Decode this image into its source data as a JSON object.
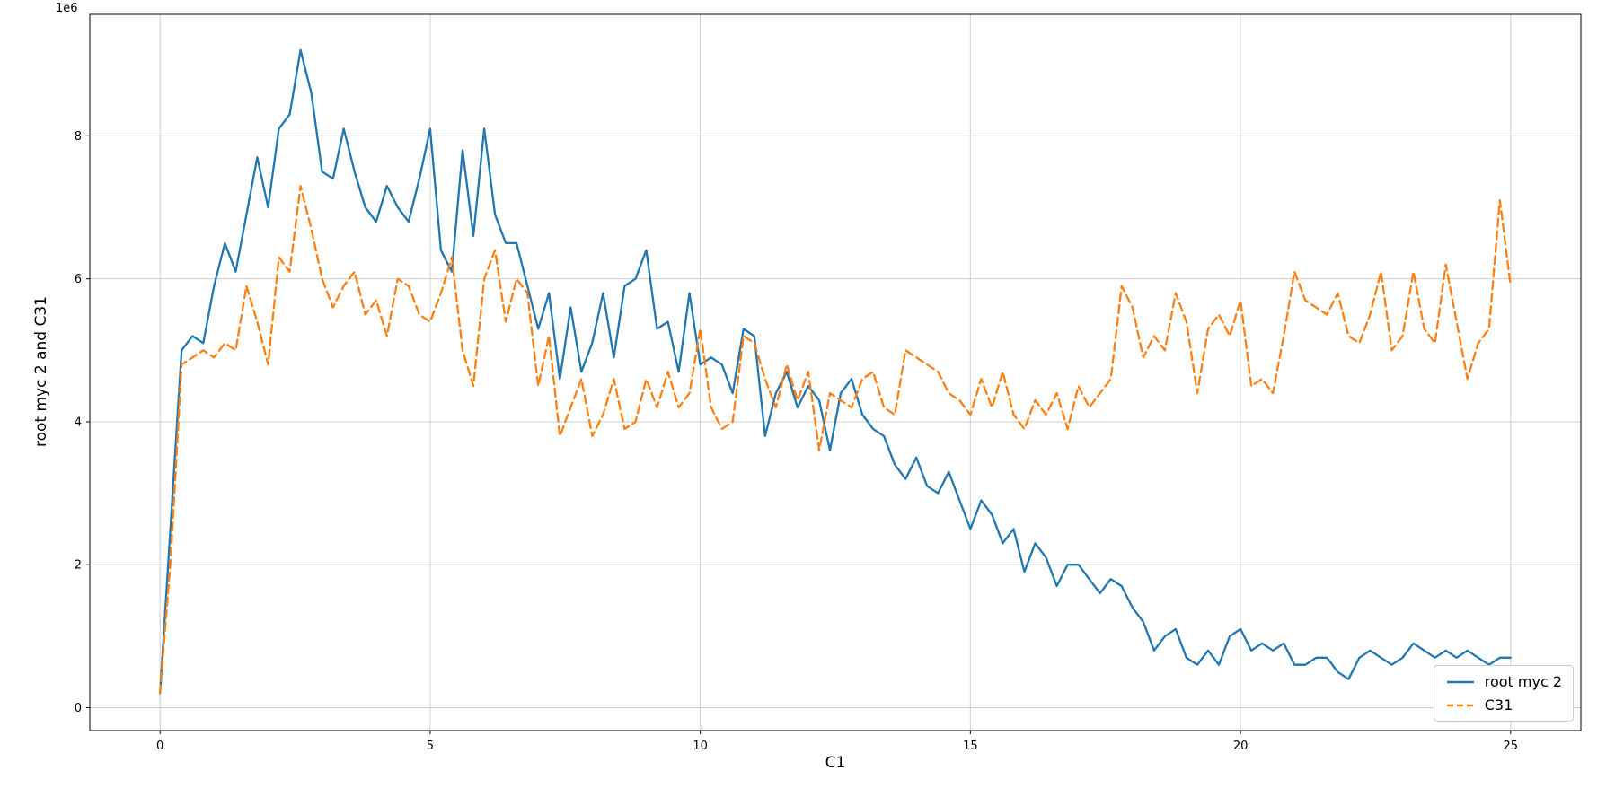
{
  "figure": {
    "background": "#ffffff",
    "grid_color": "#d0d0d0",
    "spine_color": "#000000"
  },
  "chart_data": {
    "type": "line",
    "title": "",
    "xlabel": "C1",
    "ylabel": "root myc 2 and C31",
    "y_offset_text": "1e6",
    "y_multiplier": 1000000,
    "xlim": [
      -1.3,
      26.3
    ],
    "ylim": [
      -0.32,
      9.7
    ],
    "x_ticks": [
      0,
      5,
      10,
      15,
      20,
      25
    ],
    "y_ticks": [
      0,
      2,
      4,
      6,
      8
    ],
    "grid": true,
    "legend_position": "lower right",
    "x": [
      0,
      0.2,
      0.4,
      0.6,
      0.8,
      1,
      1.2,
      1.4,
      1.6,
      1.8,
      2,
      2.2,
      2.4,
      2.6,
      2.8,
      3,
      3.2,
      3.4,
      3.6,
      3.8,
      4,
      4.2,
      4.4,
      4.6,
      4.8,
      5,
      5.2,
      5.4,
      5.6,
      5.8,
      6,
      6.2,
      6.4,
      6.6,
      6.8,
      7,
      7.2,
      7.4,
      7.6,
      7.8,
      8,
      8.2,
      8.4,
      8.6,
      8.8,
      9,
      9.2,
      9.4,
      9.6,
      9.8,
      10,
      10.2,
      10.4,
      10.6,
      10.8,
      11,
      11.2,
      11.4,
      11.6,
      11.8,
      12,
      12.2,
      12.4,
      12.6,
      12.8,
      13,
      13.2,
      13.4,
      13.6,
      13.8,
      14,
      14.2,
      14.4,
      14.6,
      14.8,
      15,
      15.2,
      15.4,
      15.6,
      15.8,
      16,
      16.2,
      16.4,
      16.6,
      16.8,
      17,
      17.2,
      17.4,
      17.6,
      17.8,
      18,
      18.2,
      18.4,
      18.6,
      18.8,
      19,
      19.2,
      19.4,
      19.6,
      19.8,
      20,
      20.2,
      20.4,
      20.6,
      20.8,
      21,
      21.2,
      21.4,
      21.6,
      21.8,
      22,
      22.2,
      22.4,
      22.6,
      22.8,
      23,
      23.2,
      23.4,
      23.6,
      23.8,
      24,
      24.2,
      24.4,
      24.6,
      24.8,
      25
    ],
    "series": [
      {
        "name": "root myc 2",
        "color": "#1f77b4",
        "style": "solid",
        "values": [
          0.2,
          2.6,
          5.0,
          5.2,
          5.1,
          5.9,
          6.5,
          6.1,
          6.9,
          7.7,
          7.0,
          8.1,
          8.3,
          9.2,
          8.6,
          7.5,
          7.4,
          8.1,
          7.5,
          7.0,
          6.8,
          7.3,
          7.0,
          6.8,
          7.4,
          8.1,
          6.4,
          6.1,
          7.8,
          6.6,
          8.1,
          6.9,
          6.5,
          6.5,
          5.9,
          5.3,
          5.8,
          4.6,
          5.6,
          4.7,
          5.1,
          5.8,
          4.9,
          5.9,
          6.0,
          6.4,
          5.3,
          5.4,
          4.7,
          5.8,
          4.8,
          4.9,
          4.8,
          4.4,
          5.3,
          5.2,
          3.8,
          4.4,
          4.7,
          4.2,
          4.5,
          4.3,
          3.6,
          4.4,
          4.6,
          4.1,
          3.9,
          3.8,
          3.4,
          3.2,
          3.5,
          3.1,
          3.0,
          3.3,
          2.9,
          2.5,
          2.9,
          2.7,
          2.3,
          2.5,
          1.9,
          2.3,
          2.1,
          1.7,
          2.0,
          2.0,
          1.8,
          1.6,
          1.8,
          1.7,
          1.4,
          1.2,
          0.8,
          1.0,
          1.1,
          0.7,
          0.6,
          0.8,
          0.6,
          1.0,
          1.1,
          0.8,
          0.9,
          0.8,
          0.9,
          0.6,
          0.6,
          0.7,
          0.7,
          0.5,
          0.4,
          0.7,
          0.8,
          0.7,
          0.6,
          0.7,
          0.9,
          0.8,
          0.7,
          0.8,
          0.7,
          0.8,
          0.7,
          0.6,
          0.7,
          0.7
        ]
      },
      {
        "name": "C31",
        "color": "#ff7f0e",
        "style": "dashed",
        "values": [
          0.2,
          2.1,
          4.8,
          4.9,
          5.0,
          4.9,
          5.1,
          5.0,
          5.9,
          5.4,
          4.8,
          6.3,
          6.1,
          7.3,
          6.7,
          6.0,
          5.6,
          5.9,
          6.1,
          5.5,
          5.7,
          5.2,
          6.0,
          5.9,
          5.5,
          5.4,
          5.8,
          6.3,
          5.0,
          4.5,
          6.0,
          6.4,
          5.4,
          6.0,
          5.8,
          4.5,
          5.2,
          3.8,
          4.2,
          4.6,
          3.8,
          4.1,
          4.6,
          3.9,
          4.0,
          4.6,
          4.2,
          4.7,
          4.2,
          4.4,
          5.3,
          4.2,
          3.9,
          4.0,
          5.2,
          5.1,
          4.6,
          4.2,
          4.8,
          4.3,
          4.7,
          3.6,
          4.4,
          4.3,
          4.2,
          4.6,
          4.7,
          4.2,
          4.1,
          5.0,
          4.9,
          4.8,
          4.7,
          4.4,
          4.3,
          4.1,
          4.6,
          4.2,
          4.7,
          4.1,
          3.9,
          4.3,
          4.1,
          4.4,
          3.9,
          4.5,
          4.2,
          4.4,
          4.6,
          5.9,
          5.6,
          4.9,
          5.2,
          5.0,
          5.8,
          5.4,
          4.4,
          5.3,
          5.5,
          5.2,
          5.7,
          4.5,
          4.6,
          4.4,
          5.2,
          6.1,
          5.7,
          5.6,
          5.5,
          5.8,
          5.2,
          5.1,
          5.5,
          6.1,
          5.0,
          5.2,
          6.1,
          5.3,
          5.1,
          6.2,
          5.4,
          4.6,
          5.1,
          5.3,
          7.1,
          5.9
        ]
      }
    ]
  }
}
